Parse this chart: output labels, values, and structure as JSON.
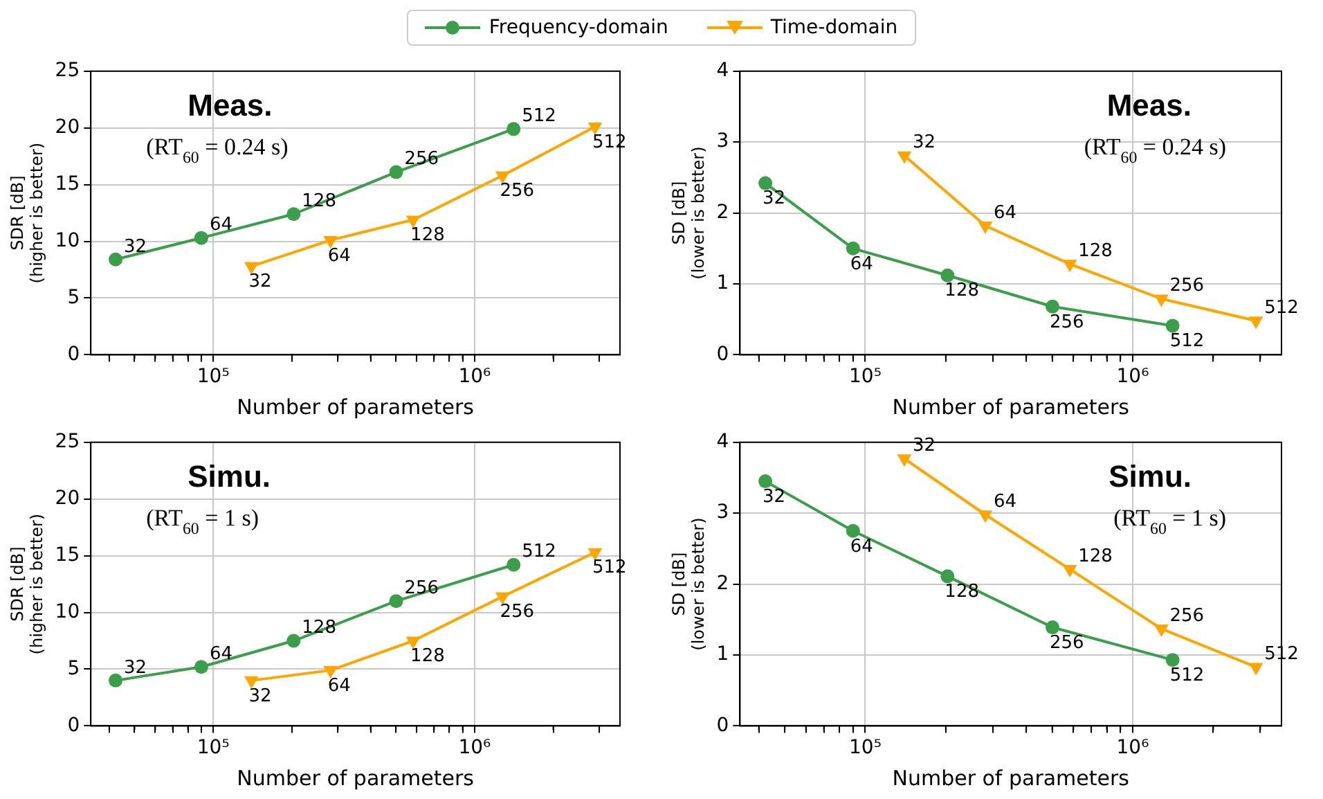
{
  "chart_data": [
    {
      "type": "line",
      "xlabel": "Number of parameters",
      "ylabel": "SDR [dB]\n(higher is better)",
      "log": "x",
      "xlim": [
        34000,
        3600000
      ],
      "xticks": [
        {
          "value": 40000,
          "label": null
        },
        {
          "value": 50000,
          "label": null
        },
        {
          "value": 60000,
          "label": null
        },
        {
          "value": 70000,
          "label": null
        },
        {
          "value": 80000,
          "label": null
        },
        {
          "value": 90000,
          "label": null
        },
        {
          "value": 100000,
          "label": "10⁵"
        },
        {
          "value": 200000,
          "label": null
        },
        {
          "value": 300000,
          "label": null
        },
        {
          "value": 400000,
          "label": null
        },
        {
          "value": 500000,
          "label": null
        },
        {
          "value": 600000,
          "label": null
        },
        {
          "value": 700000,
          "label": null
        },
        {
          "value": 800000,
          "label": null
        },
        {
          "value": 900000,
          "label": null
        },
        {
          "value": 1000000,
          "label": "10⁶"
        },
        {
          "value": 2000000,
          "label": null
        },
        {
          "value": 3000000,
          "label": null
        }
      ],
      "ylim": [
        0,
        25
      ],
      "yticks": [
        0,
        5,
        10,
        15,
        20,
        25
      ],
      "grid": true,
      "legend": "top",
      "series": [
        {
          "name": "Frequency-domain",
          "color": "#3a9e4a",
          "marker": "circle",
          "x": [
            42300,
            90000,
            203000,
            501000,
            1410000
          ],
          "values": [
            8.4,
            10.3,
            12.4,
            16.1,
            19.9
          ]
        },
        {
          "name": "Time-domain",
          "color": "#ffa500",
          "marker": "triangle",
          "x": [
            140000,
            281000,
            582000,
            1280000,
            2890000
          ],
          "values": [
            7.8,
            10.1,
            11.9,
            15.8,
            20.1
          ]
        }
      ],
      "annotations": [
        "Meas.",
        "(RT$_{60}$ = 0.24 s)",
        {
          "text": "32",
          "x": 42300,
          "y": 8.4
        },
        {
          "text": "64",
          "x": 90000,
          "y": 10.3
        },
        {
          "text": "128",
          "x": 203000,
          "y": 12.4
        },
        {
          "text": "256",
          "x": 501000,
          "y": 16.1
        },
        {
          "text": "512",
          "x": 1410000,
          "y": 19.9
        },
        {
          "text": "32",
          "x": 140000,
          "y": 7.8
        },
        {
          "text": "64",
          "x": 281000,
          "y": 10.1
        },
        {
          "text": "128",
          "x": 582000,
          "y": 11.9
        },
        {
          "text": "256",
          "x": 1280000,
          "y": 15.8
        },
        {
          "text": "512",
          "x": 2890000,
          "y": 20.1
        }
      ]
    },
    {
      "type": "line",
      "xlabel": "Number of parameters",
      "ylabel": "SD [dB]\n(lower is better)",
      "log": "x",
      "xlim": [
        34000,
        3600000
      ],
      "xticks": [
        {
          "value": 40000,
          "label": null
        },
        {
          "value": 50000,
          "label": null
        },
        {
          "value": 60000,
          "label": null
        },
        {
          "value": 70000,
          "label": null
        },
        {
          "value": 80000,
          "label": null
        },
        {
          "value": 90000,
          "label": null
        },
        {
          "value": 100000,
          "label": "10⁵"
        },
        {
          "value": 200000,
          "label": null
        },
        {
          "value": 300000,
          "label": null
        },
        {
          "value": 400000,
          "label": null
        },
        {
          "value": 500000,
          "label": null
        },
        {
          "value": 600000,
          "label": null
        },
        {
          "value": 700000,
          "label": null
        },
        {
          "value": 800000,
          "label": null
        },
        {
          "value": 900000,
          "label": null
        },
        {
          "value": 1000000,
          "label": "10⁶"
        },
        {
          "value": 2000000,
          "label": null
        },
        {
          "value": 3000000,
          "label": null
        }
      ],
      "ylim": [
        0,
        4
      ],
      "yticks": [
        0,
        1,
        2,
        3,
        4
      ],
      "grid": true,
      "series": [
        {
          "color": "#3a9e4a",
          "marker": "circle",
          "x": [
            42300,
            90000,
            203000,
            501000,
            1410000
          ],
          "values": [
            2.42,
            1.5,
            1.12,
            0.68,
            0.41
          ]
        },
        {
          "color": "#ffa500",
          "marker": "triangle",
          "x": [
            140000,
            281000,
            582000,
            1280000,
            2890000
          ],
          "values": [
            2.81,
            1.82,
            1.28,
            0.79,
            0.48
          ]
        }
      ],
      "annotations": [
        "Meas.",
        "(RT$_{60}$ = 0.24 s)",
        {
          "text": "32",
          "x": 42300,
          "y": 2.42
        },
        {
          "text": "64",
          "x": 90000,
          "y": 1.5
        },
        {
          "text": "128",
          "x": 203000,
          "y": 1.12
        },
        {
          "text": "256",
          "x": 501000,
          "y": 0.68
        },
        {
          "text": "512",
          "x": 1410000,
          "y": 0.41
        },
        {
          "text": "32",
          "x": 140000,
          "y": 2.81
        },
        {
          "text": "64",
          "x": 281000,
          "y": 1.82
        },
        {
          "text": "128",
          "x": 582000,
          "y": 1.28
        },
        {
          "text": "256",
          "x": 1280000,
          "y": 0.79
        },
        {
          "text": "512",
          "x": 2890000,
          "y": 0.48
        }
      ]
    },
    {
      "type": "line",
      "xlabel": "Number of parameters",
      "ylabel": "SDR [dB]\n(higher is better)",
      "log": "x",
      "xlim": [
        34000,
        3600000
      ],
      "xticks": [
        {
          "value": 40000,
          "label": null
        },
        {
          "value": 50000,
          "label": null
        },
        {
          "value": 60000,
          "label": null
        },
        {
          "value": 70000,
          "label": null
        },
        {
          "value": 80000,
          "label": null
        },
        {
          "value": 90000,
          "label": null
        },
        {
          "value": 100000,
          "label": "10⁵"
        },
        {
          "value": 200000,
          "label": null
        },
        {
          "value": 300000,
          "label": null
        },
        {
          "value": 400000,
          "label": null
        },
        {
          "value": 500000,
          "label": null
        },
        {
          "value": 600000,
          "label": null
        },
        {
          "value": 700000,
          "label": null
        },
        {
          "value": 800000,
          "label": null
        },
        {
          "value": 900000,
          "label": null
        },
        {
          "value": 1000000,
          "label": "10⁶"
        },
        {
          "value": 2000000,
          "label": null
        },
        {
          "value": 3000000,
          "label": null
        }
      ],
      "ylim": [
        0,
        25
      ],
      "yticks": [
        0,
        5,
        10,
        15,
        20,
        25
      ],
      "grid": true,
      "series": [
        {
          "color": "#3a9e4a",
          "marker": "circle",
          "x": [
            42300,
            90000,
            203000,
            501000,
            1410000
          ],
          "values": [
            4.0,
            5.2,
            7.5,
            11.0,
            14.2
          ]
        },
        {
          "color": "#ffa500",
          "marker": "triangle",
          "x": [
            140000,
            281000,
            582000,
            1280000,
            2890000
          ],
          "values": [
            4.0,
            4.9,
            7.5,
            11.4,
            15.3
          ]
        }
      ],
      "annotations": [
        "Simu.",
        "(RT$_{60}$ = 1 s)",
        {
          "text": "32",
          "x": 42300,
          "y": 4.0
        },
        {
          "text": "64",
          "x": 90000,
          "y": 5.2
        },
        {
          "text": "128",
          "x": 203000,
          "y": 7.5
        },
        {
          "text": "256",
          "x": 501000,
          "y": 11.0
        },
        {
          "text": "512",
          "x": 1410000,
          "y": 14.2
        },
        {
          "text": "32",
          "x": 140000,
          "y": 4.0
        },
        {
          "text": "64",
          "x": 281000,
          "y": 4.9
        },
        {
          "text": "128",
          "x": 582000,
          "y": 7.5
        },
        {
          "text": "256",
          "x": 1280000,
          "y": 11.4
        },
        {
          "text": "512",
          "x": 2890000,
          "y": 15.3
        }
      ]
    },
    {
      "type": "line",
      "xlabel": "Number of parameters",
      "ylabel": "SD [dB]\n(lower is better)",
      "log": "x",
      "xlim": [
        34000,
        3600000
      ],
      "xticks": [
        {
          "value": 40000,
          "label": null
        },
        {
          "value": 50000,
          "label": null
        },
        {
          "value": 60000,
          "label": null
        },
        {
          "value": 70000,
          "label": null
        },
        {
          "value": 80000,
          "label": null
        },
        {
          "value": 90000,
          "label": null
        },
        {
          "value": 100000,
          "label": "10⁵"
        },
        {
          "value": 200000,
          "label": null
        },
        {
          "value": 300000,
          "label": null
        },
        {
          "value": 400000,
          "label": null
        },
        {
          "value": 500000,
          "label": null
        },
        {
          "value": 600000,
          "label": null
        },
        {
          "value": 700000,
          "label": null
        },
        {
          "value": 800000,
          "label": null
        },
        {
          "value": 900000,
          "label": null
        },
        {
          "value": 1000000,
          "label": "10⁶"
        },
        {
          "value": 2000000,
          "label": null
        },
        {
          "value": 3000000,
          "label": null
        }
      ],
      "ylim": [
        0,
        4
      ],
      "yticks": [
        0,
        1,
        2,
        3,
        4
      ],
      "grid": true,
      "series": [
        {
          "color": "#3a9e4a",
          "marker": "circle",
          "x": [
            42300,
            90000,
            203000,
            501000,
            1410000
          ],
          "values": [
            3.45,
            2.75,
            2.11,
            1.39,
            0.93
          ]
        },
        {
          "color": "#ffa500",
          "marker": "triangle",
          "x": [
            140000,
            281000,
            582000,
            1280000,
            2890000
          ],
          "values": [
            3.77,
            2.98,
            2.21,
            1.37,
            0.83
          ]
        }
      ],
      "annotations": [
        "Simu.",
        "(RT$_{60}$ = 1 s)",
        {
          "text": "32",
          "x": 42300,
          "y": 3.45
        },
        {
          "text": "64",
          "x": 90000,
          "y": 2.75
        },
        {
          "text": "128",
          "x": 203000,
          "y": 2.11
        },
        {
          "text": "256",
          "x": 501000,
          "y": 1.39
        },
        {
          "text": "512",
          "x": 1410000,
          "y": 0.93
        },
        {
          "text": "32",
          "x": 140000,
          "y": 3.77
        },
        {
          "text": "64",
          "x": 281000,
          "y": 2.98
        },
        {
          "text": "128",
          "x": 582000,
          "y": 2.21
        },
        {
          "text": "256",
          "x": 1280000,
          "y": 1.37
        },
        {
          "text": "512",
          "x": 2890000,
          "y": 0.83
        }
      ]
    }
  ]
}
